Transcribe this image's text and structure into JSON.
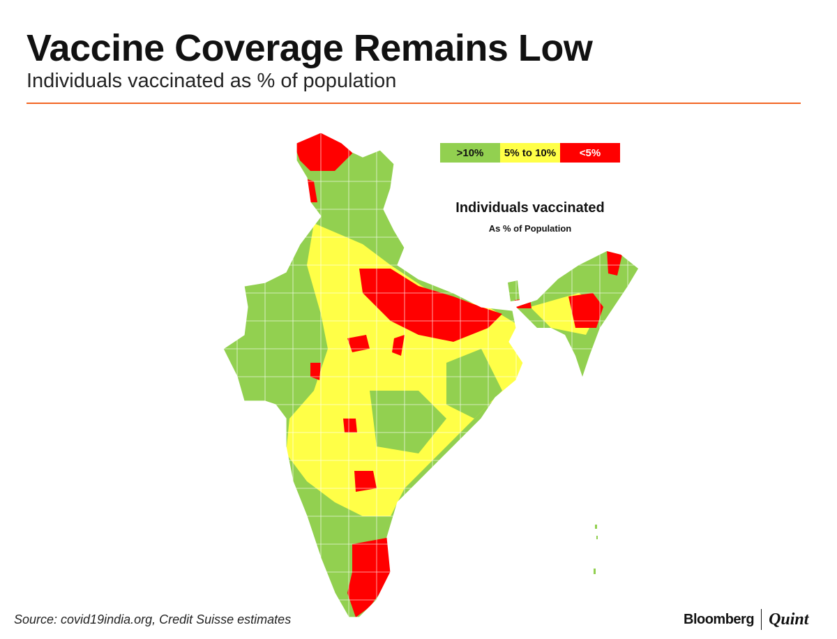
{
  "header": {
    "title": "Vaccine Coverage Remains Low",
    "subtitle": "Individuals vaccinated as % of population"
  },
  "map": {
    "title": "Individuals vaccinated",
    "subtitle": "As % of Population",
    "legend": [
      {
        "label": ">10%",
        "color": "#92d050"
      },
      {
        "label": "5% to 10%",
        "color": "#ffff47"
      },
      {
        "label": "<5%",
        "color": "#ff0000"
      }
    ]
  },
  "footer": {
    "source": "Source: covid19india.org, Credit Suisse estimates",
    "logo_left": "Bloomberg",
    "logo_right": "Quint"
  }
}
